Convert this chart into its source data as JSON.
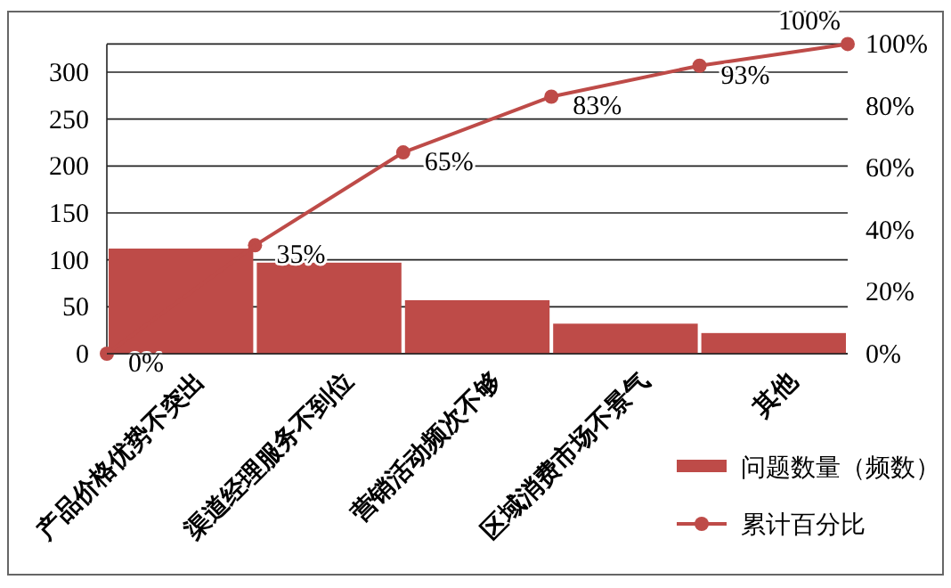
{
  "chart_data": {
    "type": "bar",
    "categories": [
      "产品价格优势不突出",
      "渠道经理服务不到位",
      "营销活动频次不够",
      "区域消费市场不景气",
      "其他"
    ],
    "series": [
      {
        "name": "问题数量（频数）",
        "color": "#be4b48",
        "values": [
          112,
          97,
          57,
          32,
          22
        ]
      },
      {
        "name": "累计百分比",
        "type": "line",
        "axis": "y2",
        "color": "#be4b48",
        "values": [
          35,
          65,
          83,
          93,
          100
        ],
        "value_labels": [
          "35%",
          "65%",
          "83%",
          "93%",
          "100%"
        ]
      }
    ],
    "annotations": [
      {
        "text": "0%",
        "x": "产品价格优势不突出",
        "y": 0
      }
    ],
    "ylim": [
      0,
      330
    ],
    "yticks": [
      0,
      50,
      100,
      150,
      200,
      250,
      300
    ],
    "y2lim": [
      0,
      100
    ],
    "y2ticks": [
      {
        "value": 0,
        "label": "0%"
      },
      {
        "value": 20,
        "label": "20%"
      },
      {
        "value": 40,
        "label": "40%"
      },
      {
        "value": 60,
        "label": "60%"
      },
      {
        "value": 80,
        "label": "80%"
      },
      {
        "value": 100,
        "label": "100%"
      }
    ],
    "grid": "y",
    "legend": "bottom right",
    "marker": "circle"
  }
}
